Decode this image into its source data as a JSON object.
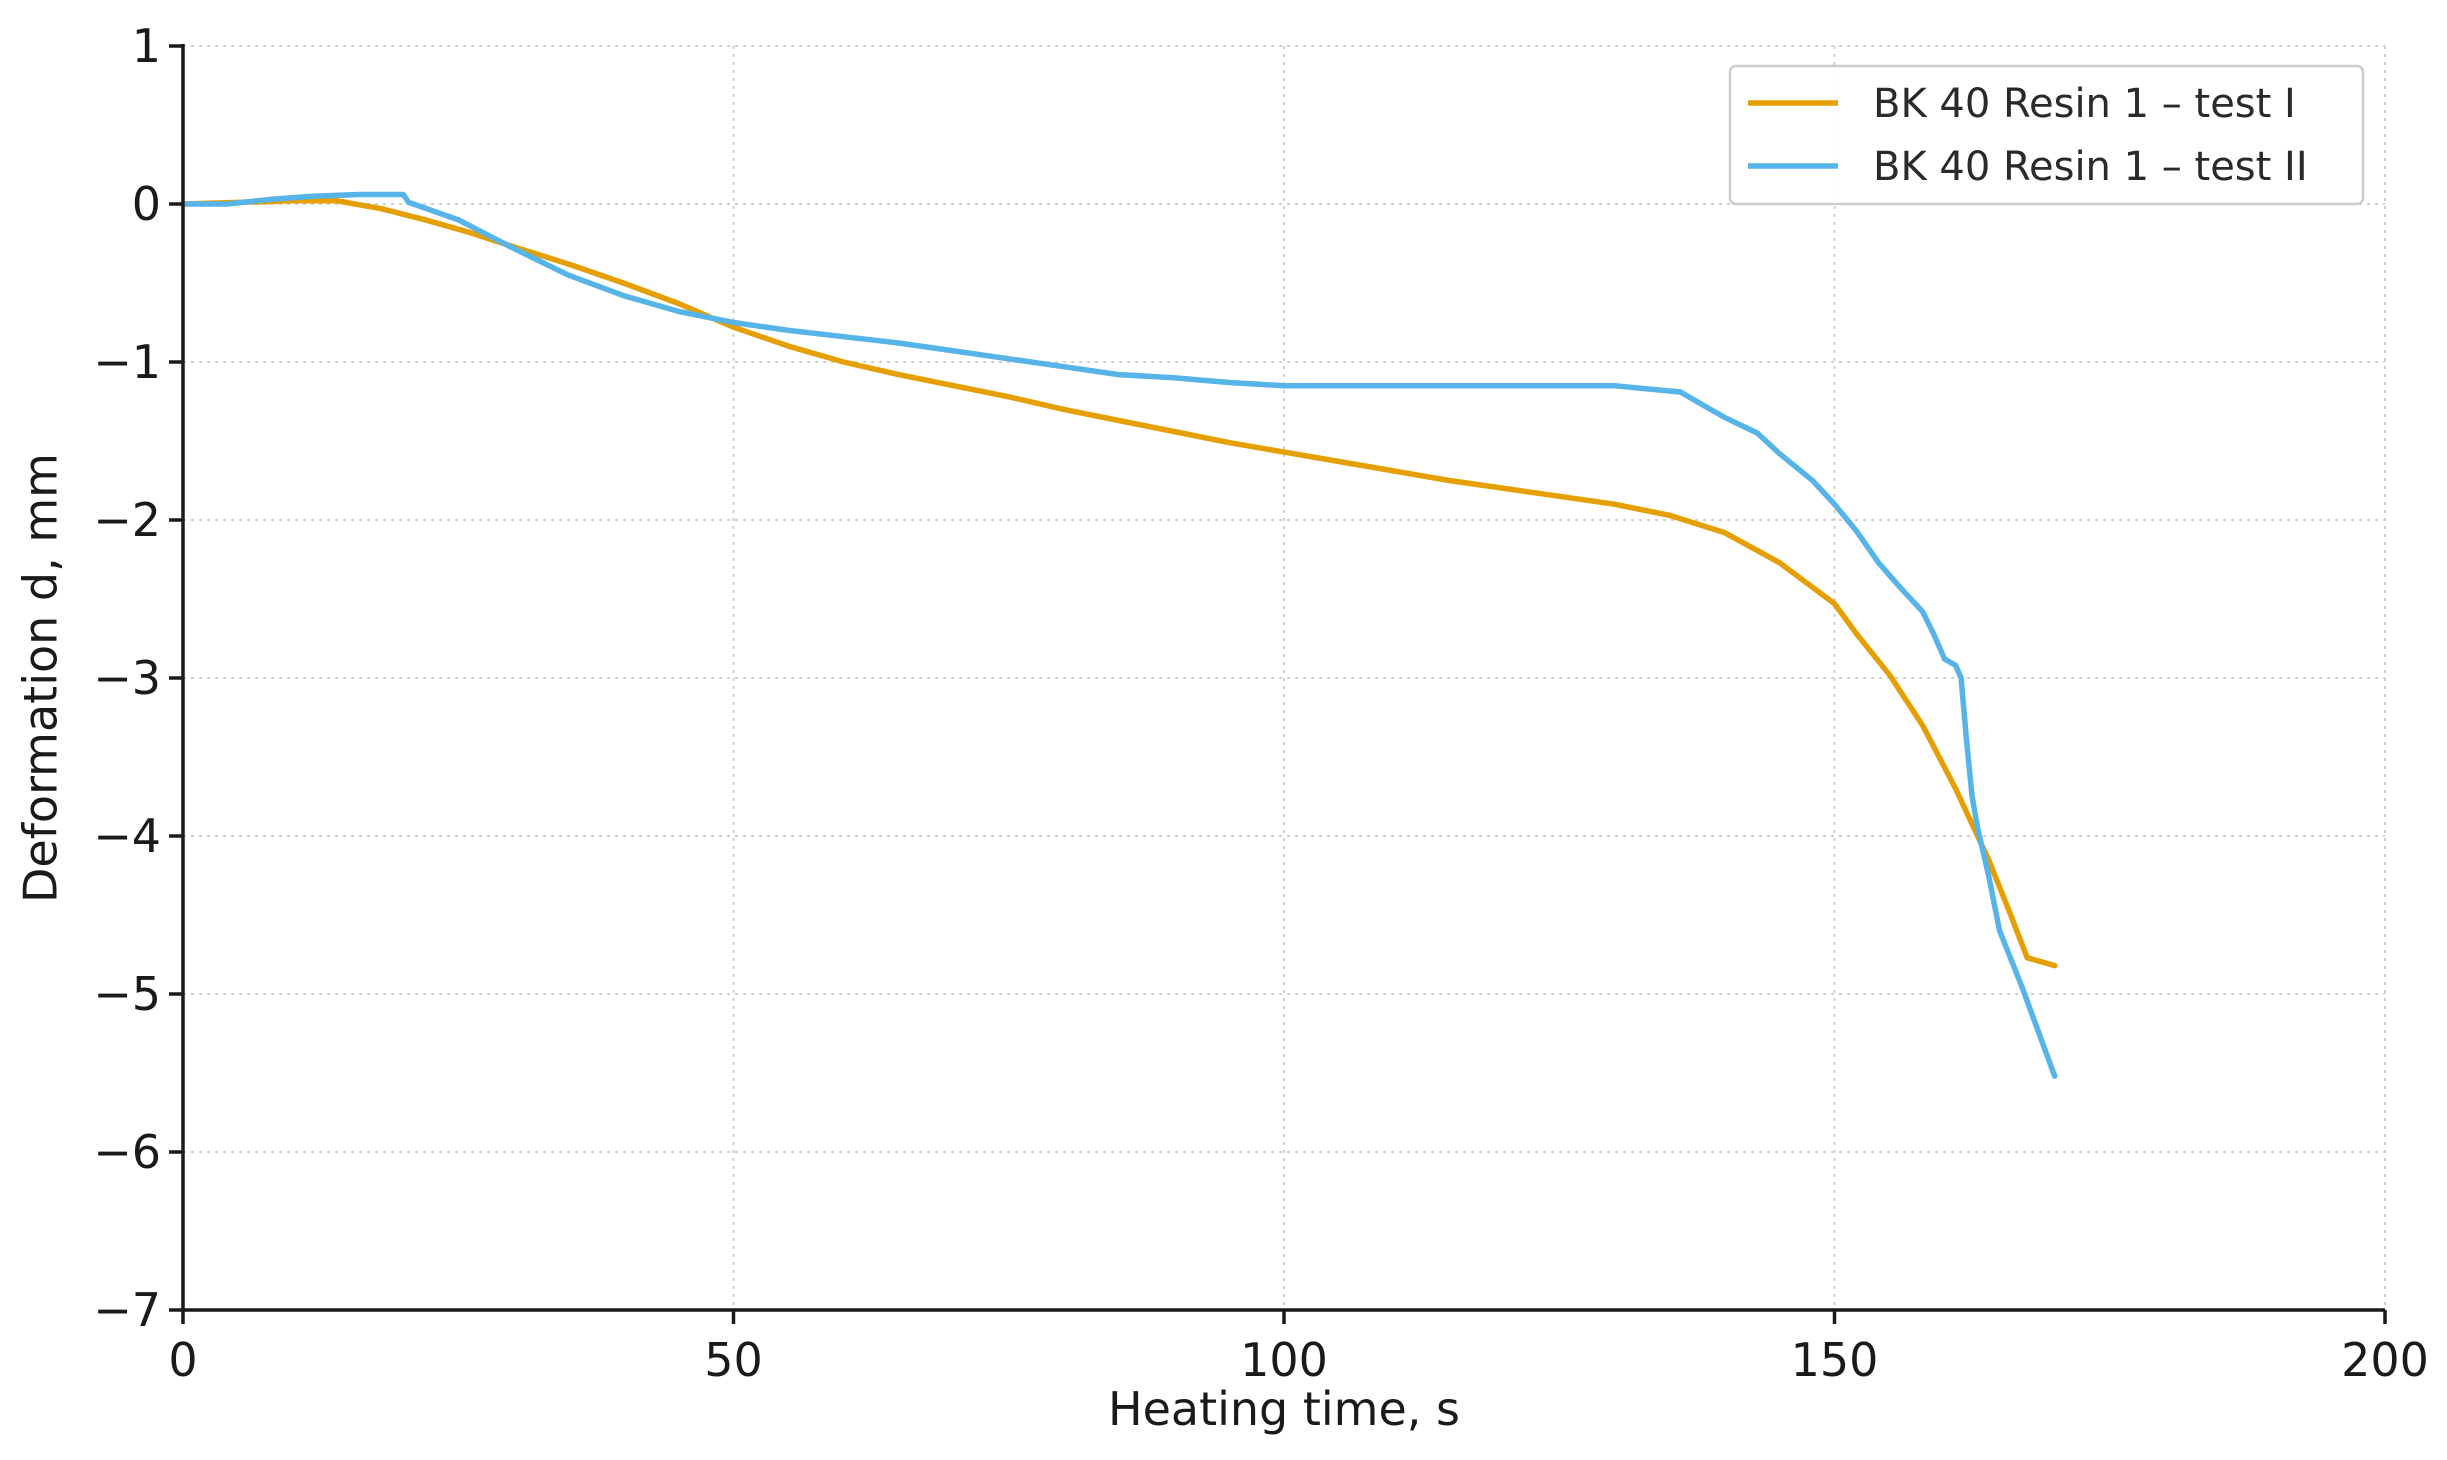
{
  "chart_data": {
    "type": "line",
    "title": "",
    "xlabel": "Heating time, s",
    "ylabel": "Deformation d, mm",
    "xlim": [
      0,
      200
    ],
    "ylim": [
      -7,
      1
    ],
    "xticks": [
      0,
      50,
      100,
      150,
      200
    ],
    "yticks": [
      1,
      0,
      -1,
      -2,
      -3,
      -4,
      -5,
      -6,
      -7
    ],
    "xtick_labels": [
      "0",
      "50",
      "100",
      "150",
      "200"
    ],
    "ytick_labels": [
      "1",
      "0",
      "−1",
      "−2",
      "−3",
      "−4",
      "−5",
      "−6",
      "−7"
    ],
    "grid": true,
    "legend_position": "top-right",
    "series": [
      {
        "name": "BK 40 Resin 1 – test I",
        "color": "#e69f00",
        "x": [
          0,
          5,
          10,
          14,
          18,
          22,
          26,
          30,
          35,
          40,
          45,
          50,
          55,
          60,
          65,
          70,
          75,
          80,
          85,
          90,
          95,
          100,
          105,
          110,
          115,
          120,
          125,
          130,
          135,
          140,
          145,
          150,
          152,
          155,
          158,
          161,
          164,
          166,
          167.5,
          170
        ],
        "y": [
          0,
          0.01,
          0.02,
          0.02,
          -0.03,
          -0.1,
          -0.18,
          -0.27,
          -0.38,
          -0.5,
          -0.63,
          -0.78,
          -0.9,
          -1.0,
          -1.08,
          -1.15,
          -1.22,
          -1.3,
          -1.37,
          -1.44,
          -1.51,
          -1.57,
          -1.63,
          -1.69,
          -1.75,
          -1.8,
          -1.85,
          -1.9,
          -1.97,
          -2.08,
          -2.27,
          -2.53,
          -2.72,
          -2.98,
          -3.3,
          -3.7,
          -4.15,
          -4.5,
          -4.77,
          -4.82
        ]
      },
      {
        "name": "BK 40 Resin 1 – test II",
        "color": "#56b4e9",
        "x": [
          0,
          4,
          8,
          12,
          16,
          20,
          20.5,
          25,
          30,
          35,
          40,
          45,
          50,
          55,
          60,
          65,
          70,
          75,
          80,
          85,
          90,
          95,
          100,
          105,
          110,
          115,
          120,
          125,
          130,
          133,
          136,
          138,
          140,
          143,
          145,
          148,
          150,
          152,
          154,
          156,
          158,
          159,
          160,
          161,
          161.5,
          162,
          162.5,
          163,
          164,
          165,
          167,
          170
        ],
        "y": [
          0,
          0,
          0.03,
          0.05,
          0.06,
          0.06,
          0.01,
          -0.1,
          -0.28,
          -0.45,
          -0.58,
          -0.68,
          -0.75,
          -0.8,
          -0.84,
          -0.88,
          -0.93,
          -0.98,
          -1.03,
          -1.08,
          -1.1,
          -1.13,
          -1.15,
          -1.15,
          -1.15,
          -1.15,
          -1.15,
          -1.15,
          -1.15,
          -1.17,
          -1.19,
          -1.27,
          -1.35,
          -1.45,
          -1.58,
          -1.75,
          -1.9,
          -2.07,
          -2.27,
          -2.43,
          -2.58,
          -2.72,
          -2.88,
          -2.92,
          -3.0,
          -3.4,
          -3.75,
          -3.95,
          -4.25,
          -4.6,
          -4.95,
          -5.52
        ]
      }
    ]
  }
}
